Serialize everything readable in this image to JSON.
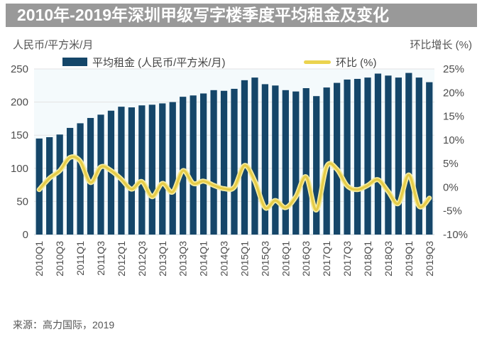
{
  "banner": {
    "title": "2010年-2019年深圳甲级写字楼季度平均租金及变化",
    "bg_color": "#999999",
    "text_color": "#ffffff"
  },
  "axis_units": {
    "left": "人民币/平方米/月",
    "right": "环比增长 (%)"
  },
  "legend": {
    "rent": {
      "label": "平均租金 (人民币/平方米/月)",
      "swatch_color": "#154669"
    },
    "qoq": {
      "label": "环比 (%)",
      "swatch_color": "#EBD34F"
    }
  },
  "chart_data": {
    "type": "combo",
    "title": "2010年-2019年深圳甲级写字楼季度平均租金及变化",
    "categories": [
      "2010Q1",
      "2010Q2",
      "2010Q3",
      "2010Q4",
      "2011Q1",
      "2011Q2",
      "2011Q3",
      "2011Q4",
      "2012Q1",
      "2012Q2",
      "2012Q3",
      "2012Q4",
      "2013Q1",
      "2013Q2",
      "2013Q3",
      "2013Q4",
      "2014Q1",
      "2014Q2",
      "2014Q3",
      "2014Q4",
      "2015Q1",
      "2015Q2",
      "2015Q3",
      "2015Q4",
      "2016Q1",
      "2016Q2",
      "2016Q3",
      "2016Q4",
      "2017Q1",
      "2017Q2",
      "2017Q3",
      "2017Q4",
      "2018Q1",
      "2018Q2",
      "2018Q3",
      "2018Q4",
      "2019Q1",
      "2019Q2",
      "2019Q3"
    ],
    "x_tick_labels": [
      "2010Q1",
      "2010Q3",
      "2011Q1",
      "2011Q3",
      "2012Q1",
      "2012Q3",
      "2013Q1",
      "2013Q3",
      "2014Q1",
      "2014Q3",
      "2015Q1",
      "2015Q3",
      "2016Q1",
      "2016Q3",
      "2017Q1",
      "2017Q3",
      "2018Q1",
      "2018Q3",
      "2019Q1",
      "2019Q3"
    ],
    "series": [
      {
        "name": "平均租金 (人民币/平方米/月)",
        "type": "bar",
        "axis": "left",
        "color": "#154669",
        "values": [
          145,
          147,
          151,
          161,
          168,
          176,
          181,
          187,
          193,
          192,
          195,
          196,
          198,
          200,
          208,
          210,
          213,
          218,
          217,
          220,
          233,
          237,
          227,
          225,
          218,
          216,
          221,
          209,
          222,
          229,
          234,
          235,
          237,
          243,
          240,
          237,
          244,
          237,
          230
        ]
      },
      {
        "name": "环比 (%)",
        "type": "line",
        "axis": "right",
        "color": "#EBD34F",
        "values": [
          -0.5,
          1.9,
          3.5,
          6.3,
          5.5,
          1.0,
          4.3,
          3.5,
          1.7,
          -0.4,
          1.2,
          -2.0,
          0.8,
          -1.0,
          3.5,
          0.8,
          1.3,
          0.4,
          -0.3,
          0.0,
          4.6,
          1.3,
          -4.3,
          -2.8,
          -4.3,
          -2.0,
          2.2,
          -4.8,
          4.4,
          3.8,
          0.3,
          -0.5,
          0.4,
          1.6,
          -0.9,
          -3.4,
          2.6,
          -4.0,
          -2.3
        ]
      }
    ],
    "left_axis": {
      "label": "人民币/平方米/月",
      "range": [
        0,
        250
      ],
      "tick_labels": [
        "0",
        "50",
        "100",
        "150",
        "200",
        "250"
      ],
      "tick_values": [
        0,
        50,
        100,
        150,
        200,
        250
      ]
    },
    "right_axis": {
      "label": "环比增长 (%)",
      "range": [
        -10,
        25
      ],
      "tick_labels": [
        "-10%",
        "-5%",
        "0%",
        "5%",
        "10%",
        "15%",
        "20%",
        "25%"
      ],
      "tick_values": [
        -10,
        -5,
        0,
        5,
        10,
        15,
        20,
        25
      ]
    },
    "grid": true,
    "legend_position": "top"
  },
  "source": "来源：高力国际，2019",
  "colors": {
    "bar": "#154669",
    "line_core": "#E6CC48",
    "line_glow": "#F5EB9E",
    "grid": "#e3e3e3",
    "axis_text": "#4d4d4d",
    "plot_bg": "#f4fafc",
    "baseline": "#c7d3d9"
  }
}
